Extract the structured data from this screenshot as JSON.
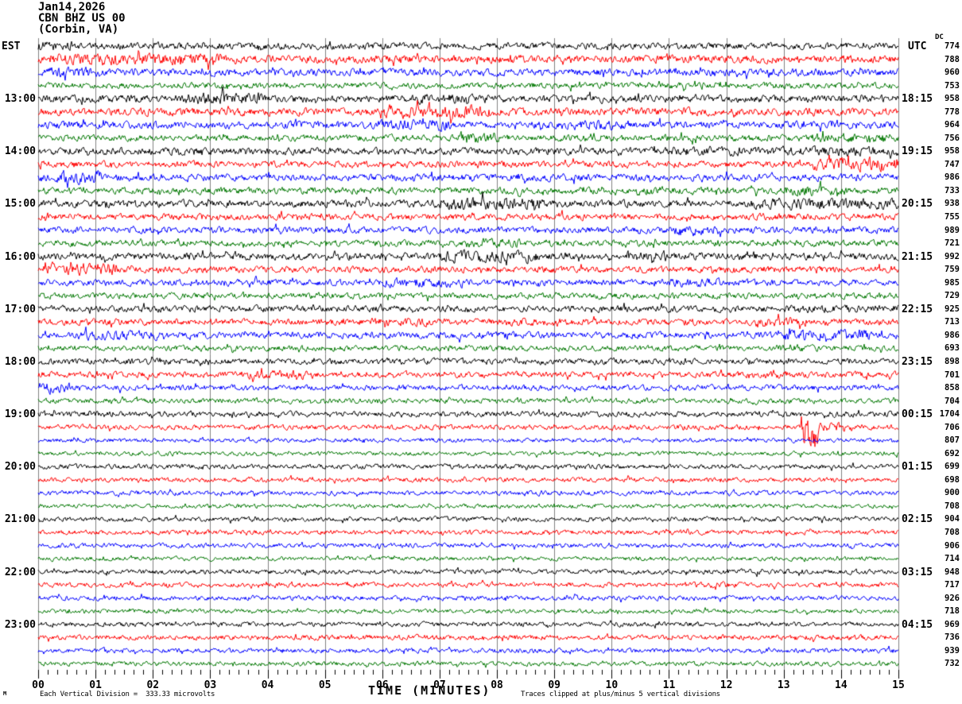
{
  "header": {
    "date_line": "Jan14,2026",
    "station_line": "CBN BHZ US 00",
    "location_line": "(Corbin, VA)"
  },
  "axis_corner": {
    "left_tz": "EST",
    "right_tz": "UTC",
    "dc_header": "DC"
  },
  "x_axis": {
    "title": "TIME (MINUTES)",
    "tick_labels": [
      "00",
      "01",
      "02",
      "03",
      "04",
      "05",
      "06",
      "07",
      "08",
      "09",
      "10",
      "11",
      "12",
      "13",
      "14",
      "15"
    ]
  },
  "footer": {
    "corner_mark": "M",
    "scale_note": "Each Vertical Division =  333.33 microvolts",
    "clip_note": "Traces clipped at plus/minus 5 vertical divisions"
  },
  "palette": {
    "black": "#000000",
    "red": "#ff0000",
    "blue": "#0000ff",
    "green": "#007700",
    "grid": "#808080",
    "tick": "#000000"
  },
  "chart_data": {
    "type": "line",
    "kind": "helicorder-seismogram",
    "station": "CBN BHZ US 00",
    "location": "Corbin, VA",
    "date": "Jan14,2026",
    "minutes_per_line": 15,
    "x_range_minutes": [
      0,
      15
    ],
    "microvolts_per_division": "333.33",
    "clip_divisions": 5,
    "grid": "vertical-minute-lines",
    "color_cycle": [
      "#000000",
      "#ff0000",
      "#0000ff",
      "#007700"
    ],
    "rows": [
      {
        "est": "",
        "utc": "",
        "dc": "774",
        "amp": 4.2
      },
      {
        "est": "",
        "utc": "",
        "dc": "788",
        "amp": 5.0
      },
      {
        "est": "",
        "utc": "",
        "dc": "960",
        "amp": 4.6
      },
      {
        "est": "",
        "utc": "",
        "dc": "753",
        "amp": 3.8
      },
      {
        "est": "13:00",
        "utc": "18:15",
        "dc": "958",
        "amp": 4.6
      },
      {
        "est": "",
        "utc": "",
        "dc": "778",
        "amp": 5.0
      },
      {
        "est": "",
        "utc": "",
        "dc": "964",
        "amp": 4.6
      },
      {
        "est": "",
        "utc": "",
        "dc": "756",
        "amp": 4.2
      },
      {
        "est": "14:00",
        "utc": "19:15",
        "dc": "958",
        "amp": 4.6
      },
      {
        "est": "",
        "utc": "",
        "dc": "747",
        "amp": 4.2
      },
      {
        "est": "",
        "utc": "",
        "dc": "986",
        "amp": 4.6
      },
      {
        "est": "",
        "utc": "",
        "dc": "733",
        "amp": 4.2
      },
      {
        "est": "15:00",
        "utc": "20:15",
        "dc": "938",
        "amp": 4.6
      },
      {
        "est": "",
        "utc": "",
        "dc": "755",
        "amp": 4.2
      },
      {
        "est": "",
        "utc": "",
        "dc": "989",
        "amp": 4.2
      },
      {
        "est": "",
        "utc": "",
        "dc": "721",
        "amp": 4.0
      },
      {
        "est": "16:00",
        "utc": "21:15",
        "dc": "992",
        "amp": 4.6
      },
      {
        "est": "",
        "utc": "",
        "dc": "759",
        "amp": 4.2
      },
      {
        "est": "",
        "utc": "",
        "dc": "985",
        "amp": 4.2
      },
      {
        "est": "",
        "utc": "",
        "dc": "729",
        "amp": 3.8
      },
      {
        "est": "17:00",
        "utc": "22:15",
        "dc": "925",
        "amp": 4.2
      },
      {
        "est": "",
        "utc": "",
        "dc": "713",
        "amp": 4.2
      },
      {
        "est": "",
        "utc": "",
        "dc": "986",
        "amp": 4.2
      },
      {
        "est": "",
        "utc": "",
        "dc": "693",
        "amp": 3.6
      },
      {
        "est": "18:00",
        "utc": "23:15",
        "dc": "898",
        "amp": 3.8
      },
      {
        "est": "",
        "utc": "",
        "dc": "701",
        "amp": 3.8
      },
      {
        "est": "",
        "utc": "",
        "dc": "858",
        "amp": 3.6
      },
      {
        "est": "",
        "utc": "",
        "dc": "704",
        "amp": 3.2
      },
      {
        "est": "19:00",
        "utc": "00:15",
        "dc": "1704",
        "amp": 3.6
      },
      {
        "est": "",
        "utc": "",
        "dc": "706",
        "amp": 3.2
      },
      {
        "est": "",
        "utc": "",
        "dc": "807",
        "amp": 2.8
      },
      {
        "est": "",
        "utc": "",
        "dc": "692",
        "amp": 2.6
      },
      {
        "est": "20:00",
        "utc": "01:15",
        "dc": "699",
        "amp": 3.0
      },
      {
        "est": "",
        "utc": "",
        "dc": "698",
        "amp": 3.0
      },
      {
        "est": "",
        "utc": "",
        "dc": "900",
        "amp": 3.0
      },
      {
        "est": "",
        "utc": "",
        "dc": "708",
        "amp": 2.7
      },
      {
        "est": "21:00",
        "utc": "02:15",
        "dc": "904",
        "amp": 3.0
      },
      {
        "est": "",
        "utc": "",
        "dc": "708",
        "amp": 3.0
      },
      {
        "est": "",
        "utc": "",
        "dc": "906",
        "amp": 3.0
      },
      {
        "est": "",
        "utc": "",
        "dc": "714",
        "amp": 2.7
      },
      {
        "est": "22:00",
        "utc": "03:15",
        "dc": "948",
        "amp": 3.0
      },
      {
        "est": "",
        "utc": "",
        "dc": "717",
        "amp": 3.0
      },
      {
        "est": "",
        "utc": "",
        "dc": "926",
        "amp": 3.0
      },
      {
        "est": "",
        "utc": "",
        "dc": "718",
        "amp": 2.7
      },
      {
        "est": "23:00",
        "utc": "04:15",
        "dc": "969",
        "amp": 3.0
      },
      {
        "est": "",
        "utc": "",
        "dc": "736",
        "amp": 3.2
      },
      {
        "est": "",
        "utc": "",
        "dc": "939",
        "amp": 3.0
      },
      {
        "est": "",
        "utc": "",
        "dc": "732",
        "amp": 2.9
      }
    ],
    "events": [
      {
        "row": 0,
        "from": 0.0,
        "to": 0.7,
        "gain": 1.5
      },
      {
        "row": 1,
        "from": 0.2,
        "to": 3.2,
        "gain": 1.5
      },
      {
        "row": 2,
        "from": 0.2,
        "to": 1.1,
        "gain": 1.5
      },
      {
        "row": 4,
        "from": 2.5,
        "to": 3.9,
        "gain": 1.7
      },
      {
        "row": 4,
        "from": 6.6,
        "to": 7.6,
        "gain": 1.4
      },
      {
        "row": 5,
        "from": 6.0,
        "to": 7.9,
        "gain": 1.7
      },
      {
        "row": 6,
        "from": 5.9,
        "to": 7.2,
        "gain": 1.6
      },
      {
        "row": 6,
        "from": 9.0,
        "to": 10.3,
        "gain": 1.3
      },
      {
        "row": 7,
        "from": 7.3,
        "to": 8.0,
        "gain": 1.4
      },
      {
        "row": 7,
        "from": 13.5,
        "to": 14.9,
        "gain": 1.5
      },
      {
        "row": 8,
        "from": 11.0,
        "to": 15.0,
        "gain": 1.3
      },
      {
        "row": 9,
        "from": 13.5,
        "to": 15.0,
        "gain": 2.0
      },
      {
        "row": 10,
        "from": 0.3,
        "to": 1.1,
        "gain": 1.9
      },
      {
        "row": 11,
        "from": 10.4,
        "to": 11.2,
        "gain": 1.4
      },
      {
        "row": 11,
        "from": 13.0,
        "to": 14.1,
        "gain": 1.6
      },
      {
        "row": 12,
        "from": 7.0,
        "to": 8.8,
        "gain": 1.8
      },
      {
        "row": 12,
        "from": 12.4,
        "to": 15.0,
        "gain": 1.5
      },
      {
        "row": 14,
        "from": 11.0,
        "to": 11.9,
        "gain": 1.4
      },
      {
        "row": 15,
        "from": 7.5,
        "to": 8.4,
        "gain": 1.5
      },
      {
        "row": 16,
        "from": 7.0,
        "to": 8.7,
        "gain": 1.8
      },
      {
        "row": 16,
        "from": 10.2,
        "to": 11.1,
        "gain": 1.5
      },
      {
        "row": 17,
        "from": 0.1,
        "to": 1.4,
        "gain": 2.0
      },
      {
        "row": 18,
        "from": 6.0,
        "to": 7.2,
        "gain": 1.5
      },
      {
        "row": 18,
        "from": 11.0,
        "to": 11.9,
        "gain": 1.4
      },
      {
        "row": 20,
        "from": 13.0,
        "to": 15.0,
        "gain": 1.3
      },
      {
        "row": 21,
        "from": 5.8,
        "to": 6.8,
        "gain": 1.4
      },
      {
        "row": 21,
        "from": 8.0,
        "to": 9.1,
        "gain": 1.3
      },
      {
        "row": 21,
        "from": 12.5,
        "to": 13.4,
        "gain": 1.5
      },
      {
        "row": 22,
        "from": 0.7,
        "to": 2.2,
        "gain": 1.4
      },
      {
        "row": 22,
        "from": 13.0,
        "to": 14.5,
        "gain": 1.7
      },
      {
        "row": 23,
        "from": 12.8,
        "to": 13.7,
        "gain": 1.4
      },
      {
        "row": 25,
        "from": 3.6,
        "to": 4.8,
        "gain": 1.5
      },
      {
        "row": 25,
        "from": 12.3,
        "to": 13.1,
        "gain": 1.3
      },
      {
        "row": 26,
        "from": 0.0,
        "to": 0.6,
        "gain": 1.9
      },
      {
        "row": 29,
        "from": 13.3,
        "to": 13.6,
        "gain": 9.0
      },
      {
        "row": 29,
        "from": 13.6,
        "to": 14.2,
        "gain": 1.8
      },
      {
        "row": 41,
        "from": 11.4,
        "to": 12.3,
        "gain": 1.3
      }
    ]
  }
}
